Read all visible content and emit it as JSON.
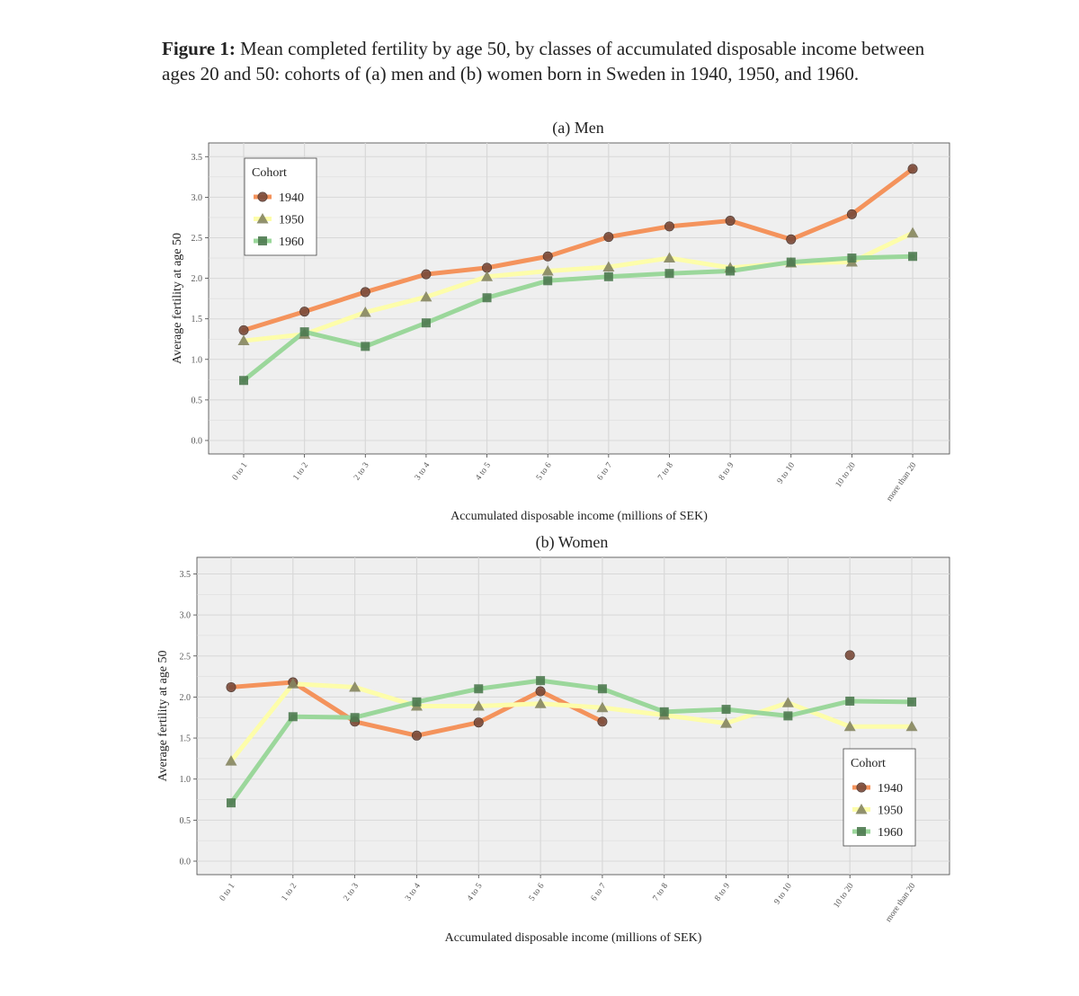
{
  "figure": {
    "label": "Figure 1:",
    "caption": "Mean completed fertility by age 50, by classes of accumulated disposable income between ages 20 and 50: cohorts of (a) men and (b) women born in Sweden in 1940, 1950, and 1960."
  },
  "colors": {
    "1940_line": "#f4935c",
    "1950_line": "#fdfdaa",
    "1960_line": "#9bd79b",
    "1940_marker": "#7a4a3a",
    "1950_marker": "#858560",
    "1960_marker": "#4e7a50",
    "panel_bg": "#efefef",
    "grid": "#d8d8d8"
  },
  "chart_data": [
    {
      "type": "line",
      "title": "(a) Men",
      "xlabel": "Accumulated disposable income (millions of SEK)",
      "ylabel": "Average fertility at age 50",
      "categories": [
        "0 to 1",
        "1 to 2",
        "2 to 3",
        "3 to 4",
        "4 to 5",
        "5 to 6",
        "6 to 7",
        "7 to 8",
        "8 to 9",
        "9 to 10",
        "10 to 20",
        "more than 20"
      ],
      "ylim": [
        0,
        3.5
      ],
      "yticks": [
        "0.0",
        "0.5",
        "1.0",
        "1.5",
        "2.0",
        "2.5",
        "3.0",
        "3.5"
      ],
      "grid": true,
      "legend": {
        "title": "Cohort",
        "placement": "top-left"
      },
      "series": [
        {
          "name": "1940",
          "marker": "circle",
          "values": [
            1.36,
            1.59,
            1.83,
            2.05,
            2.13,
            2.27,
            2.51,
            2.64,
            2.71,
            2.48,
            2.79,
            3.35
          ]
        },
        {
          "name": "1950",
          "marker": "triangle",
          "values": [
            1.23,
            1.31,
            1.58,
            1.77,
            2.02,
            2.09,
            2.14,
            2.25,
            2.13,
            2.19,
            2.2,
            2.56
          ]
        },
        {
          "name": "1960",
          "marker": "square",
          "values": [
            0.74,
            1.34,
            1.16,
            1.45,
            1.76,
            1.97,
            2.02,
            2.06,
            2.09,
            2.2,
            2.25,
            2.27
          ]
        }
      ]
    },
    {
      "type": "line",
      "title": "(b) Women",
      "xlabel": "Accumulated disposable income (millions of SEK)",
      "ylabel": "Average fertility at age 50",
      "categories": [
        "0 to 1",
        "1 to 2",
        "2 to 3",
        "3 to 4",
        "4 to 5",
        "5 to 6",
        "6 to 7",
        "7 to 8",
        "8 to 9",
        "9 to 10",
        "10 to 20",
        "more than 20"
      ],
      "ylim": [
        0,
        3.5
      ],
      "yticks": [
        "0.0",
        "0.5",
        "1.0",
        "1.5",
        "2.0",
        "2.5",
        "3.0",
        "3.5"
      ],
      "grid": true,
      "legend": {
        "title": "Cohort",
        "placement": "bottom-right"
      },
      "series": [
        {
          "name": "1940",
          "marker": "circle",
          "values": [
            2.12,
            2.18,
            1.7,
            1.53,
            1.69,
            2.07,
            1.7,
            null,
            null,
            null,
            2.51,
            null
          ]
        },
        {
          "name": "1950",
          "marker": "triangle",
          "values": [
            1.22,
            2.16,
            2.12,
            1.89,
            1.89,
            1.92,
            1.87,
            1.78,
            1.68,
            1.93,
            1.64,
            1.64
          ]
        },
        {
          "name": "1960",
          "marker": "square",
          "values": [
            0.71,
            1.76,
            1.75,
            1.94,
            2.1,
            2.2,
            2.1,
            1.82,
            1.85,
            1.77,
            1.95,
            1.94
          ]
        }
      ]
    }
  ]
}
